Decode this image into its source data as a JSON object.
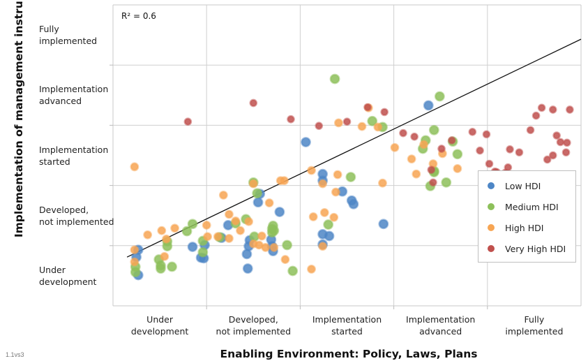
{
  "chart_data": {
    "type": "scatter",
    "xlabel": "Enabling Environment: Policy, Laws, Plans",
    "ylabel": "Implementation of management instruments",
    "x_categories": [
      "Under development",
      "Developed, not implemented",
      "Implementation started",
      "Implementation advanced",
      "Fully implemented"
    ],
    "y_categories": [
      "Under development",
      "Developed, not implemented",
      "Implementation started",
      "Implementation advanced",
      "Fully implemented"
    ],
    "xlim": [
      0.5,
      5.5
    ],
    "ylim": [
      0.5,
      5.5
    ],
    "grid": true,
    "annotation": "R² = 0.6",
    "trendline": {
      "x": [
        0.65,
        5.5
      ],
      "y": [
        1.31,
        4.93
      ]
    },
    "legend_position": "right",
    "series": [
      {
        "name": "Low HDI",
        "color": "#4d86c6",
        "points": [
          [
            0.77,
            1.43
          ],
          [
            0.77,
            1.01
          ],
          [
            0.75,
            1.31
          ],
          [
            1.48,
            1.51
          ],
          [
            1.44,
            1.3
          ],
          [
            1.35,
            1.48
          ],
          [
            1.47,
            1.29
          ],
          [
            1.73,
            1.84
          ],
          [
            1.66,
            1.63
          ],
          [
            1.96,
            1.59
          ],
          [
            1.95,
            1.49
          ],
          [
            1.93,
            1.36
          ],
          [
            1.94,
            1.12
          ],
          [
            2.19,
            1.6
          ],
          [
            2.21,
            1.41
          ],
          [
            2.2,
            1.49
          ],
          [
            2.05,
            2.22
          ],
          [
            2.07,
            2.36
          ],
          [
            2.28,
            2.06
          ],
          [
            2.56,
            3.22
          ],
          [
            2.74,
            1.52
          ],
          [
            2.74,
            1.69
          ],
          [
            2.74,
            2.69
          ],
          [
            2.74,
            2.58
          ],
          [
            2.81,
            1.66
          ],
          [
            2.95,
            2.4
          ],
          [
            3.05,
            2.25
          ],
          [
            3.07,
            2.19
          ],
          [
            3.39,
            1.86
          ],
          [
            3.87,
            3.83
          ]
        ]
      },
      {
        "name": "Medium HDI",
        "color": "#8dc05a",
        "points": [
          [
            0.74,
            1.06
          ],
          [
            0.74,
            1.15
          ],
          [
            0.99,
            1.27
          ],
          [
            1.08,
            1.57
          ],
          [
            1.01,
            1.17
          ],
          [
            1.01,
            1.12
          ],
          [
            1.08,
            1.49
          ],
          [
            1.13,
            1.15
          ],
          [
            1.29,
            1.74
          ],
          [
            1.35,
            1.86
          ],
          [
            1.46,
            1.58
          ],
          [
            1.46,
            1.39
          ],
          [
            1.64,
            1.64
          ],
          [
            1.81,
            1.87
          ],
          [
            1.92,
            1.94
          ],
          [
            2.01,
            1.65
          ],
          [
            2.0,
            2.55
          ],
          [
            2.04,
            2.37
          ],
          [
            2.2,
            1.72
          ],
          [
            2.21,
            1.83
          ],
          [
            2.22,
            1.75
          ],
          [
            2.2,
            1.78
          ],
          [
            2.36,
            1.51
          ],
          [
            2.42,
            1.08
          ],
          [
            2.8,
            1.85
          ],
          [
            2.87,
            4.27
          ],
          [
            3.04,
            2.64
          ],
          [
            3.27,
            3.57
          ],
          [
            3.38,
            3.47
          ],
          [
            3.93,
            3.42
          ],
          [
            3.84,
            3.25
          ],
          [
            3.99,
            3.98
          ],
          [
            3.89,
            2.49
          ],
          [
            3.93,
            2.72
          ],
          [
            3.81,
            3.11
          ],
          [
            4.06,
            2.55
          ],
          [
            4.13,
            3.23
          ],
          [
            4.18,
            3.02
          ],
          [
            3.93,
            2.74
          ]
        ]
      },
      {
        "name": "High HDI",
        "color": "#f7a553",
        "points": [
          [
            0.73,
            2.81
          ],
          [
            0.73,
            1.23
          ],
          [
            0.73,
            1.43
          ],
          [
            0.87,
            1.68
          ],
          [
            1.05,
            1.32
          ],
          [
            1.07,
            1.61
          ],
          [
            1.02,
            1.75
          ],
          [
            1.16,
            1.79
          ],
          [
            1.5,
            1.84
          ],
          [
            1.51,
            1.65
          ],
          [
            1.62,
            1.65
          ],
          [
            1.68,
            2.34
          ],
          [
            1.74,
            1.62
          ],
          [
            1.74,
            2.02
          ],
          [
            1.86,
            1.75
          ],
          [
            1.81,
            1.91
          ],
          [
            1.95,
            1.9
          ],
          [
            2.0,
            2.53
          ],
          [
            2.0,
            1.53
          ],
          [
            2.06,
            1.51
          ],
          [
            2.09,
            1.66
          ],
          [
            2.13,
            1.47
          ],
          [
            2.17,
            2.21
          ],
          [
            2.22,
            1.47
          ],
          [
            2.29,
            2.58
          ],
          [
            2.34,
            1.27
          ],
          [
            2.33,
            2.58
          ],
          [
            2.62,
            1.11
          ],
          [
            2.62,
            2.75
          ],
          [
            2.64,
            1.98
          ],
          [
            2.74,
            1.49
          ],
          [
            2.74,
            2.53
          ],
          [
            2.76,
            2.05
          ],
          [
            2.86,
            1.97
          ],
          [
            2.88,
            2.39
          ],
          [
            2.9,
            2.68
          ],
          [
            2.91,
            3.54
          ],
          [
            3.16,
            3.48
          ],
          [
            3.23,
            3.79
          ],
          [
            3.33,
            3.47
          ],
          [
            3.38,
            2.54
          ],
          [
            3.51,
            3.13
          ],
          [
            3.69,
            2.94
          ],
          [
            3.74,
            2.69
          ],
          [
            3.82,
            3.18
          ],
          [
            3.92,
            2.86
          ],
          [
            4.02,
            3.03
          ],
          [
            4.18,
            2.78
          ]
        ]
      },
      {
        "name": "Very High HDI",
        "color": "#c0504d",
        "points": [
          [
            1.3,
            3.56
          ],
          [
            2.0,
            3.87
          ],
          [
            2.4,
            3.6
          ],
          [
            2.7,
            3.49
          ],
          [
            3.0,
            3.56
          ],
          [
            3.22,
            3.8
          ],
          [
            3.4,
            3.72
          ],
          [
            3.6,
            3.37
          ],
          [
            3.72,
            3.31
          ],
          [
            3.9,
            2.76
          ],
          [
            3.92,
            2.55
          ],
          [
            4.01,
            3.11
          ],
          [
            4.12,
            3.25
          ],
          [
            4.34,
            3.39
          ],
          [
            4.42,
            3.08
          ],
          [
            4.49,
            3.35
          ],
          [
            4.52,
            2.86
          ],
          [
            4.58,
            2.73
          ],
          [
            4.6,
            2.72
          ],
          [
            4.69,
            2.71
          ],
          [
            4.72,
            2.8
          ],
          [
            4.74,
            3.1
          ],
          [
            4.84,
            3.05
          ],
          [
            4.96,
            3.42
          ],
          [
            5.02,
            3.66
          ],
          [
            5.08,
            3.79
          ],
          [
            5.14,
            2.93
          ],
          [
            5.2,
            3.0
          ],
          [
            5.24,
            3.33
          ],
          [
            5.2,
            3.76
          ],
          [
            5.28,
            3.22
          ],
          [
            5.34,
            3.05
          ],
          [
            5.35,
            3.21
          ],
          [
            5.38,
            3.76
          ]
        ]
      }
    ]
  }
}
